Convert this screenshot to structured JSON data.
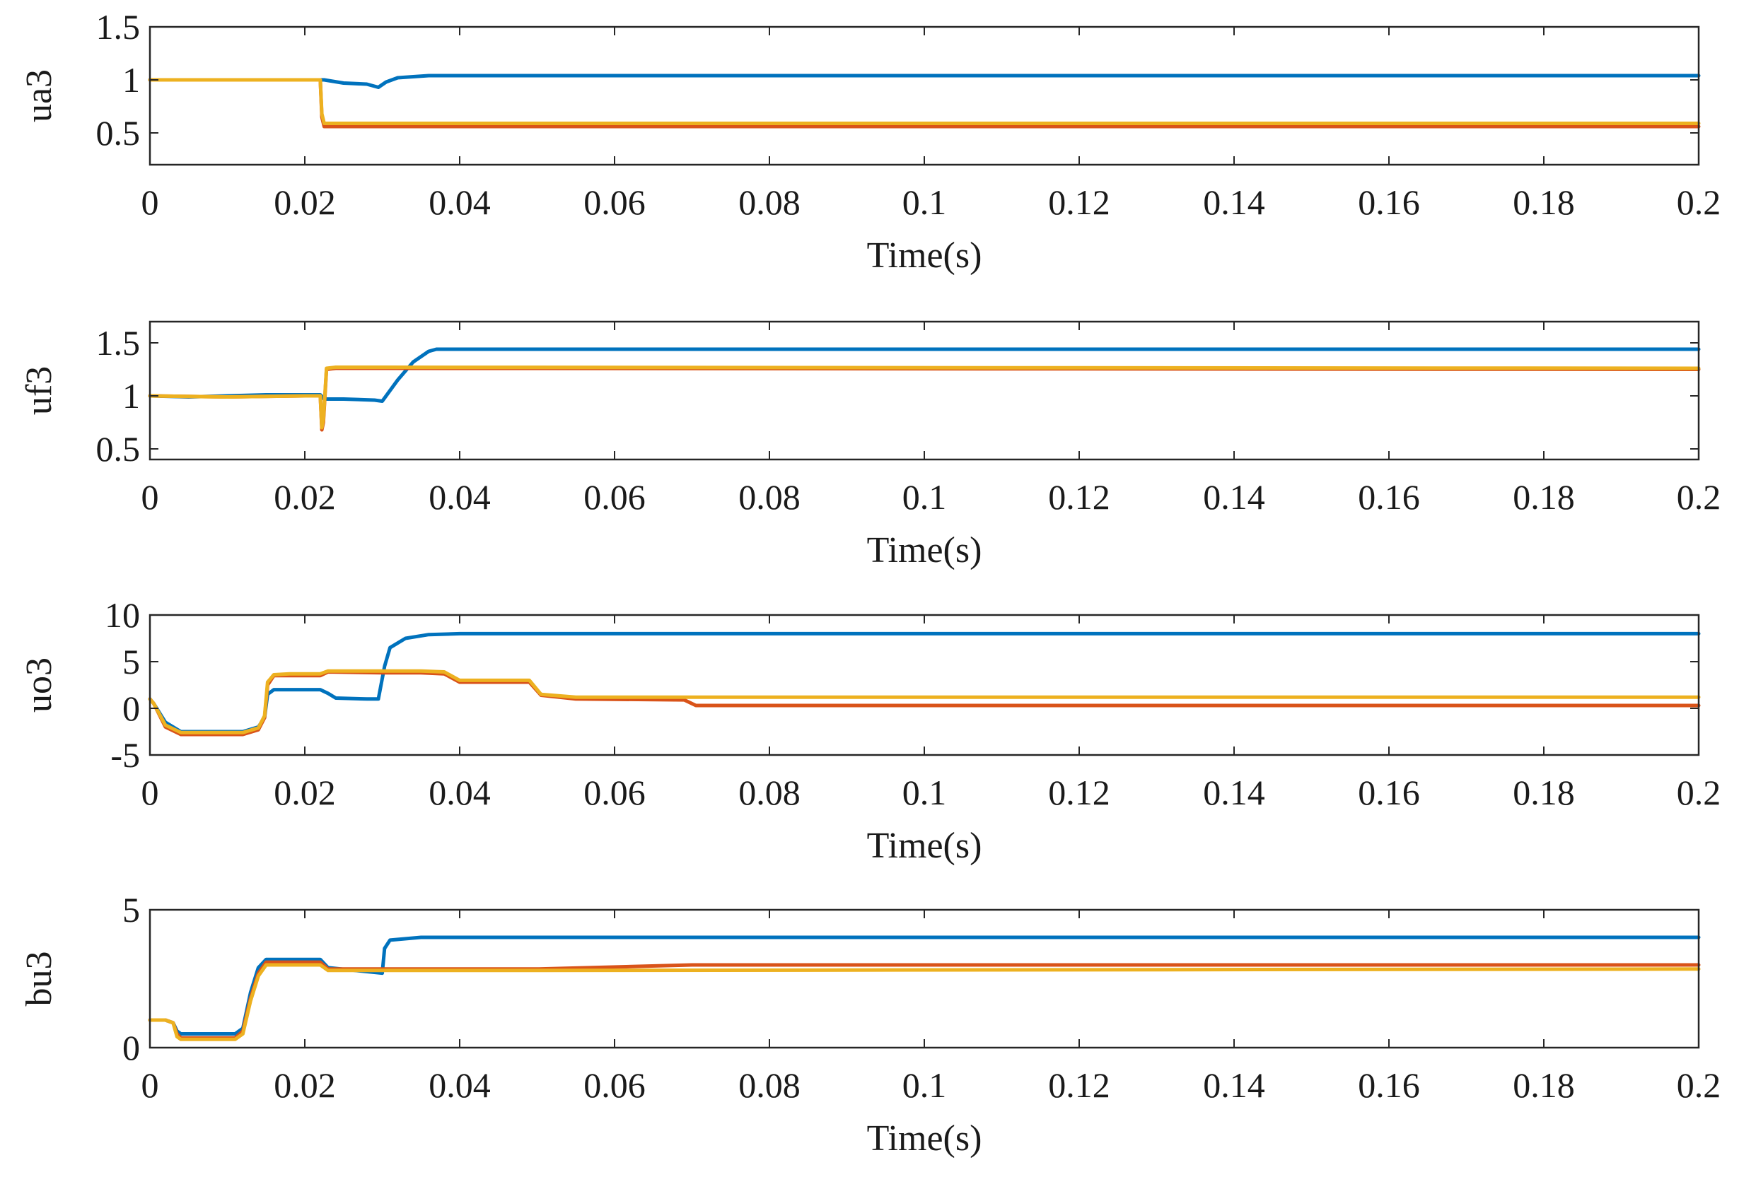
{
  "figure": {
    "colors": {
      "series1": "#0072BD",
      "series2": "#D95319",
      "series3": "#EDB120",
      "axis": "#262626"
    }
  },
  "chart_data": [
    {
      "type": "line",
      "ylabel": "ua3",
      "xlabel": "Time(s)",
      "xlim": [
        0,
        0.2
      ],
      "ylim": [
        0.2,
        1.5
      ],
      "xticks": [
        0,
        0.02,
        0.04,
        0.06,
        0.08,
        0.1,
        0.12,
        0.14,
        0.16,
        0.18,
        0.2
      ],
      "xtick_labels": [
        "0",
        "0.02",
        "0.04",
        "0.06",
        "0.08",
        "0.1",
        "0.12",
        "0.14",
        "0.16",
        "0.18",
        "0.2"
      ],
      "yticks": [
        0.5,
        1,
        1.5
      ],
      "ytick_labels": [
        "0.5",
        "1",
        "1.5"
      ],
      "series": [
        {
          "name": "series 1",
          "color": "#0072BD",
          "x": [
            0,
            0.022,
            0.0225,
            0.025,
            0.028,
            0.0295,
            0.0305,
            0.032,
            0.034,
            0.036,
            0.2
          ],
          "y": [
            1,
            1,
            1.0,
            0.97,
            0.96,
            0.93,
            0.98,
            1.02,
            1.03,
            1.04,
            1.04
          ]
        },
        {
          "name": "series 2",
          "color": "#D95319",
          "x": [
            0,
            0.022,
            0.0222,
            0.0225,
            0.2
          ],
          "y": [
            1,
            1,
            0.65,
            0.56,
            0.56
          ]
        },
        {
          "name": "series 3",
          "color": "#EDB120",
          "x": [
            0,
            0.022,
            0.0222,
            0.0225,
            0.2
          ],
          "y": [
            1,
            1,
            0.68,
            0.59,
            0.59
          ]
        }
      ]
    },
    {
      "type": "line",
      "ylabel": "uf3",
      "xlabel": "Time(s)",
      "xlim": [
        0,
        0.2
      ],
      "ylim": [
        0.4,
        1.7
      ],
      "xticks": [
        0,
        0.02,
        0.04,
        0.06,
        0.08,
        0.1,
        0.12,
        0.14,
        0.16,
        0.18,
        0.2
      ],
      "xtick_labels": [
        "0",
        "0.02",
        "0.04",
        "0.06",
        "0.08",
        "0.1",
        "0.12",
        "0.14",
        "0.16",
        "0.18",
        "0.2"
      ],
      "yticks": [
        0.5,
        1,
        1.5
      ],
      "ytick_labels": [
        "0.5",
        "1",
        "1.5"
      ],
      "series": [
        {
          "name": "series 1",
          "color": "#0072BD",
          "x": [
            0,
            0.005,
            0.015,
            0.02,
            0.022,
            0.0225,
            0.025,
            0.029,
            0.03,
            0.0305,
            0.032,
            0.034,
            0.036,
            0.037,
            0.2
          ],
          "y": [
            1,
            0.99,
            1.01,
            1.01,
            1.01,
            0.97,
            0.97,
            0.96,
            0.95,
            1.0,
            1.15,
            1.32,
            1.42,
            1.44,
            1.44
          ]
        },
        {
          "name": "series 2",
          "color": "#D95319",
          "x": [
            0,
            0.01,
            0.02,
            0.022,
            0.0222,
            0.0224,
            0.0228,
            0.024,
            0.03,
            0.2
          ],
          "y": [
            1,
            0.99,
            1.0,
            1.0,
            0.68,
            0.75,
            1.25,
            1.26,
            1.26,
            1.25
          ]
        },
        {
          "name": "series 3",
          "color": "#EDB120",
          "x": [
            0,
            0.01,
            0.02,
            0.022,
            0.0222,
            0.0224,
            0.0228,
            0.024,
            0.03,
            0.2
          ],
          "y": [
            1,
            0.99,
            1.0,
            1.0,
            0.7,
            0.78,
            1.26,
            1.27,
            1.27,
            1.26
          ]
        }
      ]
    },
    {
      "type": "line",
      "ylabel": "uo3",
      "xlabel": "Time(s)",
      "xlim": [
        0,
        0.2
      ],
      "ylim": [
        -5,
        10
      ],
      "xticks": [
        0,
        0.02,
        0.04,
        0.06,
        0.08,
        0.1,
        0.12,
        0.14,
        0.16,
        0.18,
        0.2
      ],
      "xtick_labels": [
        "0",
        "0.02",
        "0.04",
        "0.06",
        "0.08",
        "0.1",
        "0.12",
        "0.14",
        "0.16",
        "0.18",
        "0.2"
      ],
      "yticks": [
        -5,
        0,
        5,
        10
      ],
      "ytick_labels": [
        "-5",
        "0",
        "5",
        "10"
      ],
      "series": [
        {
          "name": "series 1",
          "color": "#0072BD",
          "x": [
            0,
            0.0005,
            0.002,
            0.004,
            0.012,
            0.014,
            0.0148,
            0.0152,
            0.016,
            0.02,
            0.022,
            0.023,
            0.024,
            0.028,
            0.0295,
            0.0303,
            0.031,
            0.033,
            0.036,
            0.04,
            0.2
          ],
          "y": [
            1,
            0.5,
            -1.5,
            -2.5,
            -2.5,
            -2.0,
            -1.0,
            1.5,
            2.0,
            2.0,
            2.0,
            1.6,
            1.1,
            1.0,
            1.0,
            4.5,
            6.5,
            7.5,
            7.9,
            8.0,
            8.0
          ]
        },
        {
          "name": "series 2",
          "color": "#D95319",
          "x": [
            0,
            0.0005,
            0.002,
            0.004,
            0.012,
            0.014,
            0.0148,
            0.0152,
            0.016,
            0.018,
            0.022,
            0.023,
            0.03,
            0.035,
            0.038,
            0.04,
            0.049,
            0.0505,
            0.055,
            0.069,
            0.0705,
            0.2
          ],
          "y": [
            1,
            0.5,
            -2.0,
            -2.8,
            -2.8,
            -2.3,
            -1.0,
            2.5,
            3.5,
            3.5,
            3.5,
            3.9,
            3.8,
            3.8,
            3.7,
            2.8,
            2.8,
            1.4,
            1.0,
            0.9,
            0.3,
            0.3
          ]
        },
        {
          "name": "series 3",
          "color": "#EDB120",
          "x": [
            0,
            0.0005,
            0.002,
            0.004,
            0.012,
            0.014,
            0.0148,
            0.0152,
            0.016,
            0.018,
            0.022,
            0.023,
            0.03,
            0.035,
            0.038,
            0.04,
            0.049,
            0.0505,
            0.055,
            0.2
          ],
          "y": [
            1,
            0.5,
            -1.8,
            -2.6,
            -2.6,
            -2.1,
            -0.8,
            2.8,
            3.6,
            3.7,
            3.7,
            4.0,
            4.0,
            4.0,
            3.9,
            3.0,
            3.0,
            1.5,
            1.2,
            1.2
          ]
        }
      ]
    },
    {
      "type": "line",
      "ylabel": "bu3",
      "xlabel": "Time(s)",
      "xlim": [
        0,
        0.2
      ],
      "ylim": [
        0,
        5
      ],
      "xticks": [
        0,
        0.02,
        0.04,
        0.06,
        0.08,
        0.1,
        0.12,
        0.14,
        0.16,
        0.18,
        0.2
      ],
      "xtick_labels": [
        "0",
        "0.02",
        "0.04",
        "0.06",
        "0.08",
        "0.1",
        "0.12",
        "0.14",
        "0.16",
        "0.18",
        "0.2"
      ],
      "yticks": [
        0,
        5
      ],
      "ytick_labels": [
        "0",
        "5"
      ],
      "series": [
        {
          "name": "series 1",
          "color": "#0072BD",
          "x": [
            0,
            0.002,
            0.003,
            0.0035,
            0.004,
            0.011,
            0.012,
            0.013,
            0.014,
            0.015,
            0.022,
            0.023,
            0.03,
            0.0303,
            0.031,
            0.035,
            0.2
          ],
          "y": [
            1,
            1,
            0.9,
            0.6,
            0.5,
            0.5,
            0.7,
            2.0,
            2.9,
            3.2,
            3.2,
            2.9,
            2.7,
            3.6,
            3.9,
            4.0,
            4.0
          ]
        },
        {
          "name": "series 2",
          "color": "#D95319",
          "x": [
            0,
            0.002,
            0.003,
            0.0035,
            0.004,
            0.011,
            0.012,
            0.013,
            0.014,
            0.015,
            0.022,
            0.023,
            0.05,
            0.07,
            0.2
          ],
          "y": [
            1,
            1,
            0.9,
            0.5,
            0.35,
            0.35,
            0.6,
            1.8,
            2.7,
            3.1,
            3.1,
            2.85,
            2.85,
            3.0,
            3.0
          ]
        },
        {
          "name": "series 3",
          "color": "#EDB120",
          "x": [
            0,
            0.002,
            0.003,
            0.0035,
            0.004,
            0.011,
            0.012,
            0.013,
            0.014,
            0.015,
            0.022,
            0.023,
            0.05,
            0.2
          ],
          "y": [
            1,
            1,
            0.9,
            0.4,
            0.3,
            0.3,
            0.5,
            1.7,
            2.6,
            3.0,
            3.0,
            2.8,
            2.8,
            2.85
          ]
        }
      ]
    }
  ]
}
